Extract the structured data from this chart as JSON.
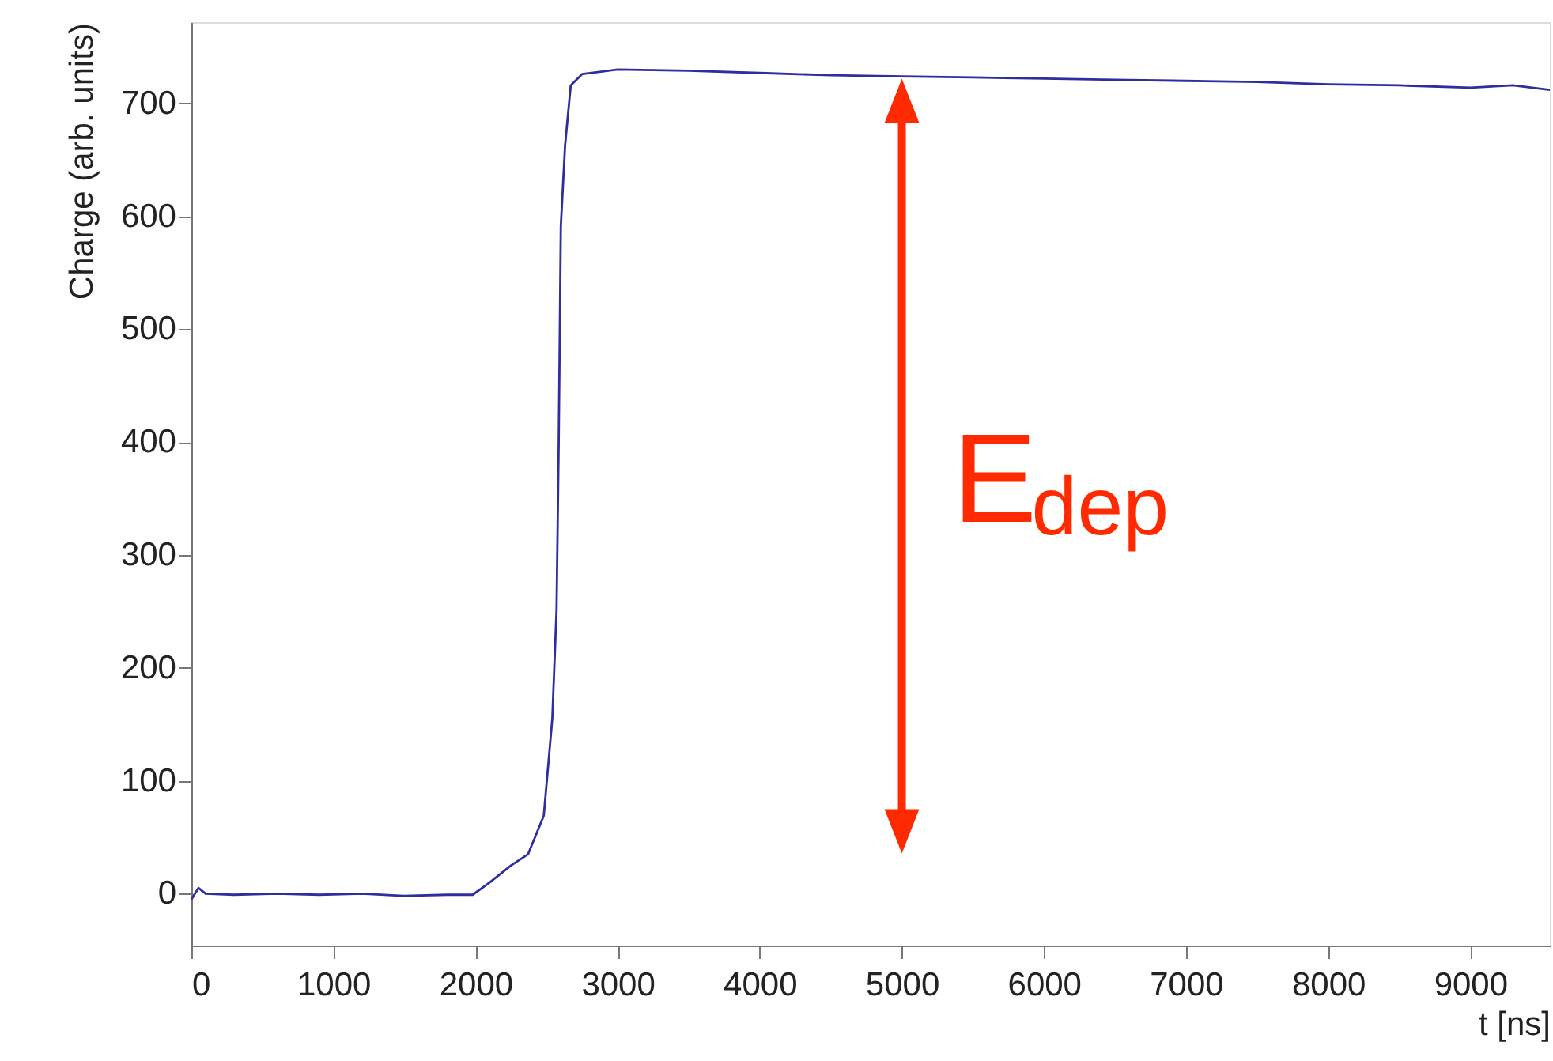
{
  "chart_data": {
    "type": "line",
    "xlabel": "t [ns]",
    "ylabel": "Charge (arb. units)",
    "xlim": [
      0,
      9560
    ],
    "ylim": [
      -46,
      772
    ],
    "xticks": [
      0,
      1000,
      2000,
      3000,
      4000,
      5000,
      6000,
      7000,
      8000,
      9000
    ],
    "yticks": [
      0,
      100,
      200,
      300,
      400,
      500,
      600,
      700
    ],
    "grid": false,
    "marker": "none",
    "line_style": "solid",
    "series": [
      {
        "color": "#2e2e9e",
        "x": [
          0,
          50,
          100,
          300,
          600,
          900,
          1200,
          1500,
          1800,
          1980,
          2100,
          2250,
          2370,
          2480,
          2540,
          2570,
          2585,
          2600,
          2630,
          2670,
          2750,
          3000,
          3500,
          4000,
          4500,
          5000,
          5500,
          6000,
          6500,
          7000,
          7500,
          8000,
          8500,
          9000,
          9300,
          9560
        ],
        "values": [
          -5,
          5,
          0,
          -1,
          0,
          -1,
          0,
          -2,
          -1,
          -1,
          10,
          25,
          35,
          69,
          155,
          252,
          398,
          591,
          663,
          716,
          726,
          730,
          729,
          727,
          725,
          724,
          723,
          722,
          721,
          720,
          719,
          717,
          716,
          714,
          716,
          712
        ]
      }
    ],
    "annotations": [
      {
        "text": "E$_{dep}$",
        "x": 5000,
        "y": 722
      }
    ]
  }
}
